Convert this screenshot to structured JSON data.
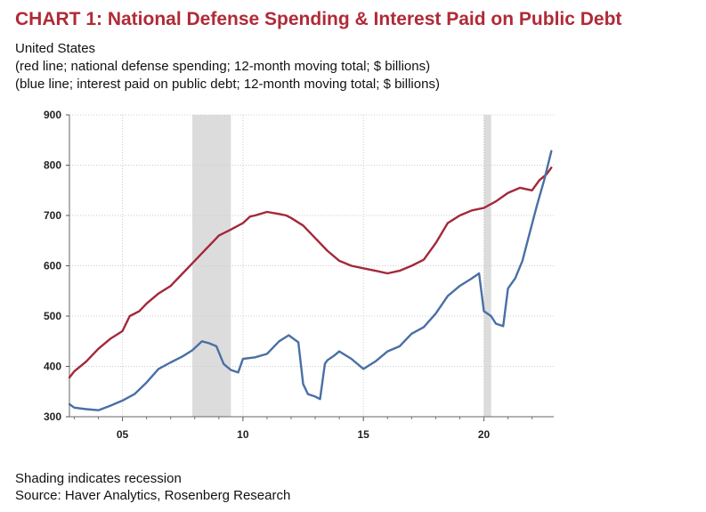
{
  "title": "CHART 1: National Defense Spending & Interest Paid on Public Debt",
  "subtitle_lines": [
    "United States",
    "(red line; national defense spending; 12-month moving total; $ billions)",
    "(blue line; interest paid on public debt; 12-month moving total; $ billions)"
  ],
  "footnote_lines": [
    "Shading indicates recession",
    "Source: Haver Analytics, Rosenberg Research"
  ],
  "chart_data": {
    "type": "line",
    "xlim": [
      2002.8,
      2022.9
    ],
    "ylim": [
      300,
      900
    ],
    "y_ticks": [
      300,
      400,
      500,
      600,
      700,
      800,
      900
    ],
    "x_ticks": [
      {
        "value": 2005,
        "label": "05"
      },
      {
        "value": 2010,
        "label": "10"
      },
      {
        "value": 2015,
        "label": "15"
      },
      {
        "value": 2020,
        "label": "20"
      }
    ],
    "grid": true,
    "recessions": [
      [
        2007.9,
        2009.5
      ],
      [
        2020.0,
        2020.3
      ]
    ],
    "colors": {
      "defense": "#a3283a",
      "interest": "#4a6fa5",
      "recession": "#dcdcdc",
      "grid": "#cccccc"
    },
    "series": [
      {
        "key": "defense",
        "x": [
          2002.8,
          2003.0,
          2003.5,
          2004.0,
          2004.5,
          2005.0,
          2005.3,
          2005.7,
          2006.0,
          2006.5,
          2007.0,
          2007.5,
          2008.0,
          2008.5,
          2008.8,
          2009.0,
          2009.5,
          2010.0,
          2010.3,
          2010.5,
          2011.0,
          2011.5,
          2011.8,
          2012.0,
          2012.5,
          2013.0,
          2013.5,
          2014.0,
          2014.5,
          2015.0,
          2015.5,
          2016.0,
          2016.5,
          2017.0,
          2017.5,
          2018.0,
          2018.5,
          2019.0,
          2019.5,
          2020.0,
          2020.5,
          2021.0,
          2021.5,
          2022.0,
          2022.3,
          2022.6,
          2022.8
        ],
        "values": [
          378,
          390,
          410,
          435,
          455,
          470,
          500,
          510,
          525,
          545,
          560,
          585,
          610,
          635,
          650,
          660,
          672,
          685,
          698,
          700,
          707,
          703,
          700,
          695,
          680,
          655,
          630,
          610,
          600,
          595,
          590,
          585,
          590,
          600,
          612,
          645,
          685,
          700,
          710,
          715,
          728,
          745,
          755,
          750,
          770,
          782,
          795
        ]
      },
      {
        "key": "interest",
        "x": [
          2002.8,
          2003.0,
          2003.5,
          2004.0,
          2004.5,
          2005.0,
          2005.5,
          2006.0,
          2006.5,
          2007.0,
          2007.5,
          2007.9,
          2008.3,
          2008.6,
          2008.9,
          2009.2,
          2009.5,
          2009.8,
          2010.0,
          2010.5,
          2011.0,
          2011.5,
          2011.9,
          2012.3,
          2012.5,
          2012.7,
          2013.0,
          2013.2,
          2013.4,
          2013.5,
          2013.8,
          2014.0,
          2014.5,
          2015.0,
          2015.5,
          2016.0,
          2016.5,
          2017.0,
          2017.5,
          2018.0,
          2018.5,
          2019.0,
          2019.5,
          2019.8,
          2020.0,
          2020.3,
          2020.5,
          2020.8,
          2021.0,
          2021.3,
          2021.6,
          2021.9,
          2022.2,
          2022.5,
          2022.8
        ],
        "values": [
          325,
          318,
          315,
          313,
          322,
          332,
          345,
          368,
          395,
          408,
          420,
          432,
          450,
          446,
          440,
          405,
          393,
          388,
          415,
          418,
          425,
          450,
          462,
          448,
          365,
          345,
          340,
          335,
          405,
          412,
          422,
          430,
          415,
          395,
          410,
          430,
          440,
          465,
          478,
          505,
          540,
          560,
          575,
          585,
          510,
          500,
          485,
          480,
          555,
          575,
          610,
          665,
          720,
          770,
          828
        ]
      }
    ]
  }
}
